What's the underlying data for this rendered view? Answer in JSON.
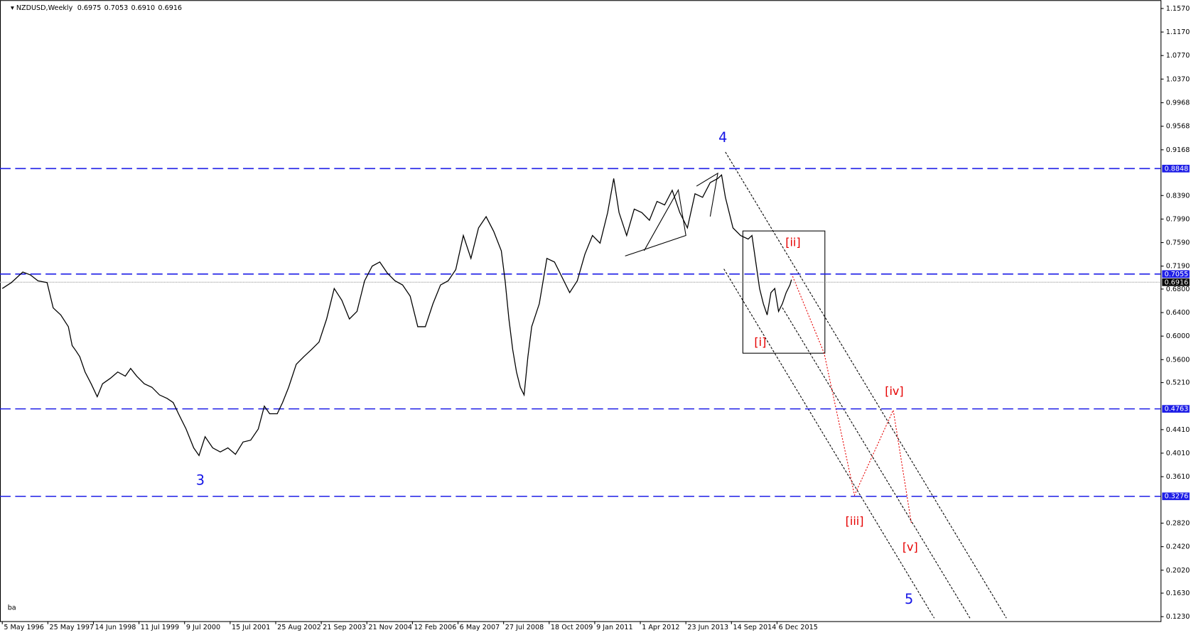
{
  "chart_data": {
    "type": "line",
    "title": "NZDUSD,Weekly",
    "ohlc": [
      "0.6975",
      "0.7053",
      "0.6910",
      "0.6916"
    ],
    "footer": "ba",
    "x": [
      0,
      12,
      27,
      37,
      47,
      59,
      67,
      77,
      87,
      92,
      97,
      102,
      109,
      117,
      125,
      132,
      142,
      152,
      162,
      169,
      177,
      187,
      197,
      207,
      217,
      225,
      232,
      242,
      252,
      259,
      267,
      277,
      287,
      297,
      307,
      317,
      327,
      337,
      345,
      352,
      362,
      369,
      377,
      387,
      397,
      407,
      417,
      427,
      437,
      447,
      457,
      467,
      477,
      487,
      497,
      507,
      517,
      527,
      537,
      547,
      557,
      567,
      577,
      587,
      597,
      607,
      617,
      627,
      637,
      647,
      657,
      662,
      667,
      672,
      677,
      682,
      687,
      692,
      697,
      707,
      717,
      727,
      737,
      747,
      757,
      767,
      777,
      787,
      797,
      805,
      812,
      822,
      832,
      842,
      852,
      862,
      872,
      882,
      892,
      902,
      912,
      922,
      932,
      942,
      947,
      952,
      962,
      972,
      982,
      987,
      992,
      997,
      1002,
      1007,
      1012,
      1017,
      1022,
      1027,
      1032,
      1037,
      1039
    ],
    "series": [
      {
        "name": "NZDUSD",
        "color": "#000000",
        "values": [
          0.681,
          0.691,
          0.709,
          0.704,
          0.694,
          0.691,
          0.648,
          0.636,
          0.616,
          0.584,
          0.575,
          0.565,
          0.539,
          0.519,
          0.497,
          0.519,
          0.528,
          0.539,
          0.532,
          0.545,
          0.532,
          0.519,
          0.513,
          0.5,
          0.494,
          0.487,
          0.468,
          0.442,
          0.41,
          0.397,
          0.429,
          0.41,
          0.403,
          0.41,
          0.399,
          0.42,
          0.423,
          0.442,
          0.481,
          0.468,
          0.468,
          0.487,
          0.513,
          0.552,
          0.565,
          0.577,
          0.59,
          0.629,
          0.681,
          0.661,
          0.629,
          0.642,
          0.694,
          0.719,
          0.726,
          0.707,
          0.694,
          0.687,
          0.668,
          0.616,
          0.616,
          0.655,
          0.687,
          0.694,
          0.713,
          0.771,
          0.732,
          0.784,
          0.803,
          0.778,
          0.745,
          0.694,
          0.629,
          0.577,
          0.539,
          0.513,
          0.5,
          0.565,
          0.616,
          0.655,
          0.732,
          0.726,
          0.7,
          0.674,
          0.694,
          0.739,
          0.771,
          0.758,
          0.81,
          0.868,
          0.81,
          0.771,
          0.816,
          0.81,
          0.797,
          0.829,
          0.823,
          0.848,
          0.81,
          0.784,
          0.842,
          0.836,
          0.861,
          0.868,
          0.874,
          0.836,
          0.784,
          0.771,
          0.765,
          0.771,
          0.726,
          0.681,
          0.655,
          0.636,
          0.674,
          0.681,
          0.642,
          0.655,
          0.674,
          0.687,
          0.696
        ]
      }
    ],
    "xlim": [
      -3,
      1525
    ],
    "xticks": [
      {
        "value": 0,
        "label": "5 May 1996"
      },
      {
        "value": 60,
        "label": "25 May 1997"
      },
      {
        "value": 120,
        "label": "14 Jun 1998"
      },
      {
        "value": 180,
        "label": "11 Jul 1999"
      },
      {
        "value": 240,
        "label": "9 Jul 2000"
      },
      {
        "value": 300,
        "label": "15 Jul 2001"
      },
      {
        "value": 360,
        "label": "25 Aug 2002"
      },
      {
        "value": 420,
        "label": "21 Sep 2003"
      },
      {
        "value": 480,
        "label": "21 Nov 2004"
      },
      {
        "value": 540,
        "label": "12 Feb 2006"
      },
      {
        "value": 600,
        "label": "6 May 2007"
      },
      {
        "value": 660,
        "label": "27 Jul 2008"
      },
      {
        "value": 720,
        "label": "18 Oct 2009"
      },
      {
        "value": 780,
        "label": "9 Jan 2011"
      },
      {
        "value": 840,
        "label": "1 Apr 2012"
      },
      {
        "value": 900,
        "label": "23 Jun 2013"
      },
      {
        "value": 960,
        "label": "14 Sep 2014"
      },
      {
        "value": 1020,
        "label": "6 Dec 2015"
      }
    ],
    "ylim": [
      0.1153,
      1.1712
    ],
    "yticks": [
      {
        "value": 1.157,
        "label": "1.1570"
      },
      {
        "value": 1.117,
        "label": "1.1170"
      },
      {
        "value": 1.077,
        "label": "1.0770"
      },
      {
        "value": 1.037,
        "label": "1.0370"
      },
      0.9968,
      0.9568,
      0.9168,
      {
        "value": 0.839,
        "label": "0.8390"
      },
      {
        "value": 0.799,
        "label": "0.7990"
      },
      {
        "value": 0.759,
        "label": "0.7590"
      },
      {
        "value": 0.719,
        "label": "0.7190"
      },
      {
        "value": 0.68,
        "label": "0.6800"
      },
      {
        "value": 0.64,
        "label": "0.6400"
      },
      {
        "value": 0.6,
        "label": "0.6000"
      },
      {
        "value": 0.56,
        "label": "0.5600"
      },
      {
        "value": 0.521,
        "label": "0.5210"
      },
      {
        "value": 0.441,
        "label": "0.4410"
      },
      {
        "value": 0.401,
        "label": "0.4010"
      },
      {
        "value": 0.361,
        "label": "0.3610"
      },
      {
        "value": 0.282,
        "label": "0.2820"
      },
      {
        "value": 0.242,
        "label": "0.2420"
      },
      {
        "value": 0.202,
        "label": "0.2020"
      },
      {
        "value": 0.163,
        "label": "0.1630"
      },
      {
        "value": 0.123,
        "label": "0.1230"
      }
    ],
    "hlines": [
      {
        "value": 0.8848,
        "label": "0.8848"
      },
      {
        "value": 0.7055,
        "label": "0.7055"
      },
      {
        "value": 0.4763,
        "label": "0.4763"
      },
      {
        "value": 0.3276,
        "label": "0.3276"
      }
    ],
    "hline_color": "#1e1ee6",
    "last": {
      "value": 0.6916,
      "label": "0.6916"
    },
    "annotations": [
      "3",
      "4",
      "5",
      "[i]",
      "[ii]",
      "[iii]",
      "[iv]",
      "[v]"
    ]
  }
}
